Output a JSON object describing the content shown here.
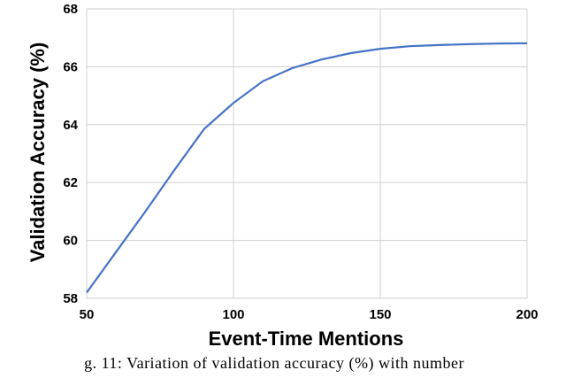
{
  "chart_data": {
    "type": "line",
    "title": "",
    "xlabel": "Event-Time Mentions",
    "ylabel": "Validation Accuracy (%)",
    "xlim": [
      50,
      200
    ],
    "ylim": [
      58,
      68
    ],
    "xticks": [
      50,
      100,
      150,
      200
    ],
    "yticks": [
      58,
      60,
      62,
      64,
      66,
      68
    ],
    "grid": true,
    "line_color": "#4472C4",
    "series": [
      {
        "x": [
          50,
          60,
          70,
          80,
          90,
          100,
          110,
          120,
          130,
          140,
          150,
          160,
          170,
          180,
          190,
          200
        ],
        "values": [
          58.2,
          59.6,
          61.0,
          62.45,
          63.85,
          64.75,
          65.5,
          65.95,
          66.25,
          66.47,
          66.62,
          66.71,
          66.75,
          66.78,
          66.8,
          66.81
        ]
      }
    ]
  },
  "caption": "g.  11:   Variation  of  validation  accuracy  (%)  with  number"
}
